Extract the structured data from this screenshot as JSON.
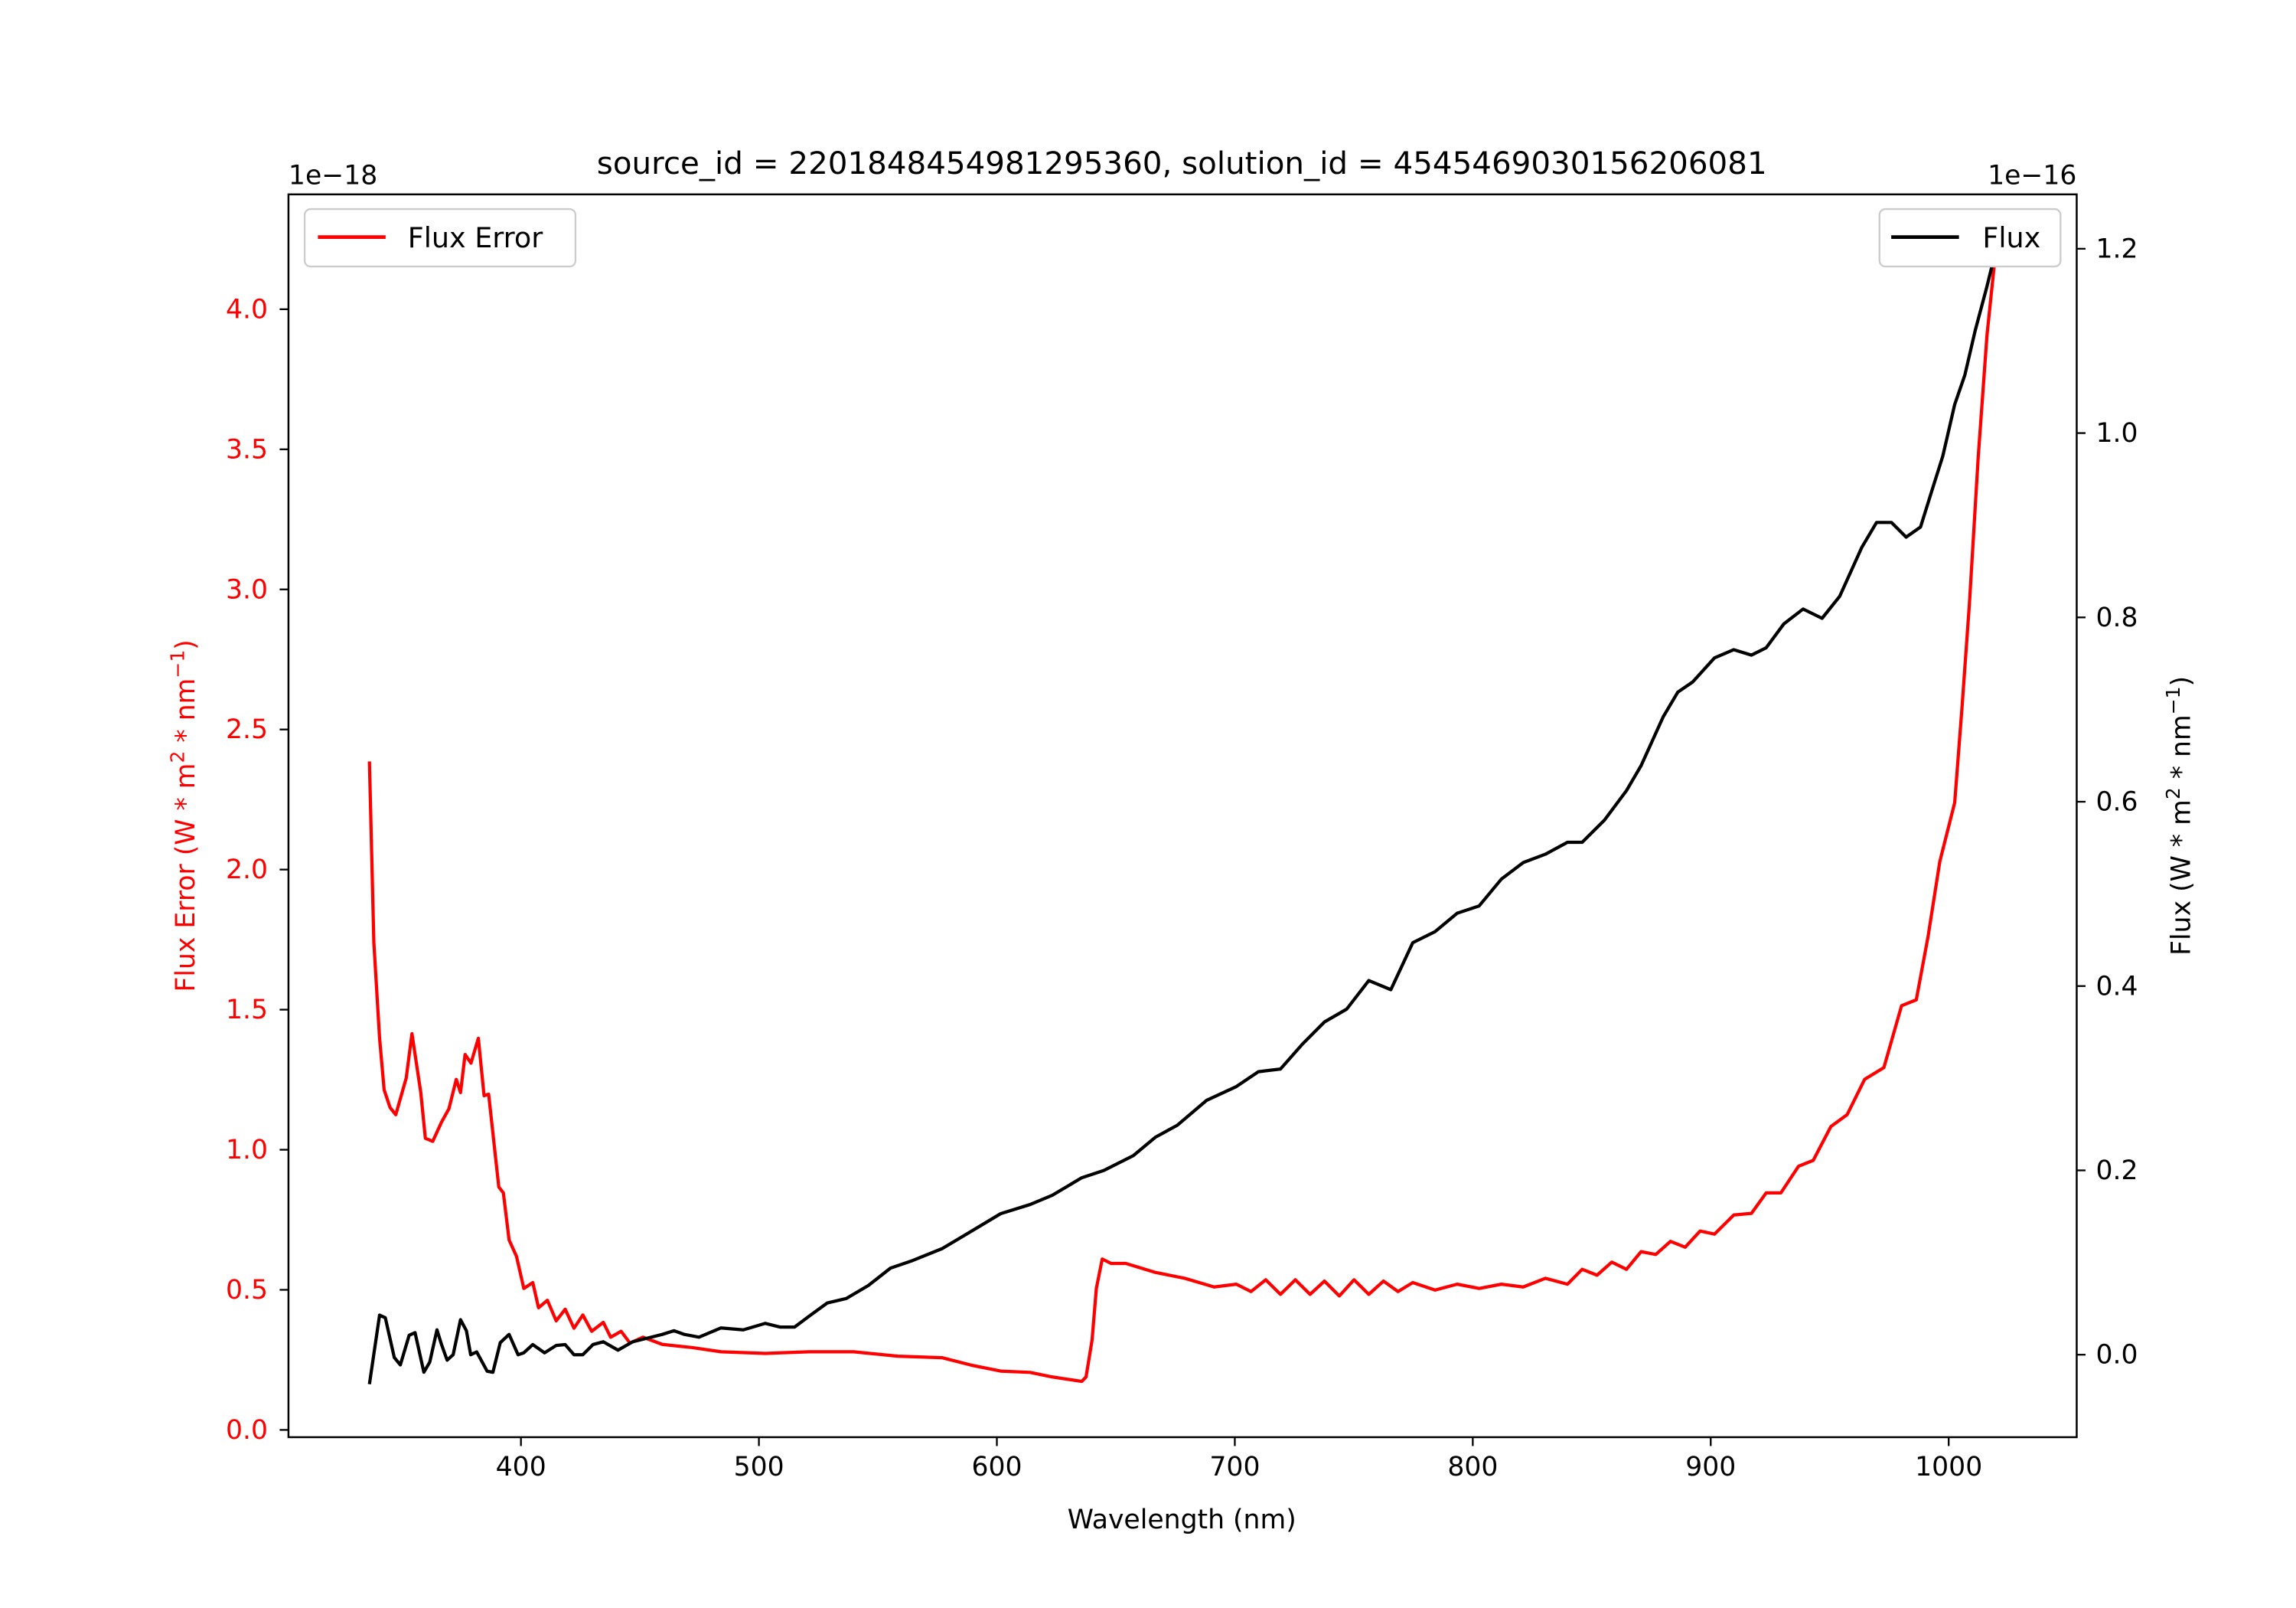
{
  "chart_data": {
    "type": "line",
    "title": "source_id = 2201848454981295360, solution_id = 4545469030156206081",
    "xlabel": "Wavelength (nm)",
    "xlim": [
      302.3,
      1053.8
    ],
    "xticks": [
      400,
      500,
      600,
      700,
      800,
      900,
      1000
    ],
    "left_axis": {
      "ylabel": "Flux Error (W * m^2 * nm^-1)",
      "ylabel_main": "Flux Error (W * m",
      "ylabel_mid": " * nm",
      "ylabel_end": ")",
      "sup1": "2",
      "sup2": "−1",
      "offset_text": "1e−18",
      "ylim": [
        -0.026,
        4.41
      ],
      "yticks": [
        0.0,
        0.5,
        1.0,
        1.5,
        2.0,
        2.5,
        3.0,
        3.5,
        4.0
      ],
      "color": "#ff0000"
    },
    "right_axis": {
      "ylabel": "Flux (W * m^2 * nm^-1)",
      "ylabel_main": "Flux (W * m",
      "ylabel_mid": " * nm",
      "ylabel_end": ")",
      "sup1": "2",
      "sup2": "−1",
      "offset_text": "1e−16",
      "ylim": [
        -0.0895,
        1.259
      ],
      "yticks": [
        0.0,
        0.2,
        0.4,
        0.6,
        0.8,
        1.0,
        1.2
      ],
      "color": "#000000"
    },
    "legend_left": {
      "label": "Flux Error",
      "placement": "top-left"
    },
    "legend_right": {
      "label": "Flux",
      "placement": "top-right"
    },
    "series": [
      {
        "name": "Flux Error",
        "axis": "left",
        "color": "#ff0000",
        "x": [
          336.3,
          338.2,
          340.6,
          342.5,
          345,
          347.4,
          351.8,
          354.2,
          357.9,
          359.8,
          362.9,
          366.6,
          369.7,
          372.8,
          374.6,
          376.5,
          379,
          382.1,
          384.5,
          386.4,
          390.7,
          392.6,
          395,
          398.1,
          401.2,
          405,
          407.4,
          411.1,
          414.8,
          418.6,
          422.3,
          426,
          429.7,
          434.6,
          437.7,
          442.1,
          445.8,
          451.3,
          459.4,
          471.8,
          484.1,
          502.7,
          521.2,
          539.8,
          558.3,
          576.9,
          589.3,
          601.6,
          614,
          623.3,
          635.7,
          637.5,
          640,
          641.8,
          644.3,
          648,
          654.2,
          666.6,
          679,
          691.3,
          700.6,
          706.8,
          713,
          719.2,
          725.4,
          731.6,
          737.7,
          743.9,
          750.1,
          756.3,
          762.5,
          768.6,
          774.8,
          784.1,
          793.4,
          802.7,
          812,
          821.2,
          830.5,
          839.8,
          846,
          852.2,
          858.4,
          864.6,
          870.7,
          876.9,
          883.1,
          889.3,
          895.5,
          901.6,
          909.7,
          917.1,
          923.3,
          929.5,
          936.9,
          943.1,
          950.5,
          957.3,
          964.7,
          972.8,
          980.2,
          986.4,
          991.3,
          996.3,
          1002.5,
          1005.6,
          1008.7,
          1012.4,
          1016.1,
          1019.8
        ],
        "y": [
          2.386,
          1.74,
          1.398,
          1.214,
          1.151,
          1.125,
          1.256,
          1.414,
          1.204,
          1.041,
          1.03,
          1.099,
          1.146,
          1.251,
          1.204,
          1.34,
          1.309,
          1.398,
          1.193,
          1.198,
          0.867,
          0.846,
          0.678,
          0.62,
          0.505,
          0.526,
          0.436,
          0.463,
          0.389,
          0.431,
          0.363,
          0.41,
          0.352,
          0.384,
          0.331,
          0.352,
          0.31,
          0.331,
          0.305,
          0.294,
          0.279,
          0.273,
          0.279,
          0.279,
          0.263,
          0.258,
          0.231,
          0.21,
          0.205,
          0.189,
          0.173,
          0.189,
          0.321,
          0.505,
          0.61,
          0.594,
          0.594,
          0.562,
          0.541,
          0.51,
          0.52,
          0.494,
          0.536,
          0.484,
          0.536,
          0.484,
          0.531,
          0.478,
          0.536,
          0.484,
          0.531,
          0.494,
          0.526,
          0.499,
          0.52,
          0.505,
          0.52,
          0.51,
          0.541,
          0.52,
          0.573,
          0.552,
          0.599,
          0.573,
          0.636,
          0.626,
          0.673,
          0.652,
          0.71,
          0.699,
          0.767,
          0.773,
          0.846,
          0.846,
          0.941,
          0.962,
          1.083,
          1.125,
          1.251,
          1.293,
          1.514,
          1.535,
          1.761,
          2.029,
          2.239,
          2.581,
          2.949,
          3.474,
          3.905,
          4.21
        ]
      },
      {
        "name": "Flux",
        "axis": "right",
        "color": "#000000",
        "x": [
          336.3,
          340.6,
          343,
          346.8,
          349.3,
          353,
          355.5,
          359.2,
          361.7,
          364.7,
          366.6,
          369,
          371.5,
          374.6,
          377.1,
          378.9,
          381.4,
          385.8,
          388.2,
          391.3,
          395,
          398.8,
          401.2,
          405,
          409.9,
          414.8,
          418.6,
          422.3,
          426,
          430.3,
          434.6,
          440.8,
          447,
          453.2,
          459.4,
          464.3,
          468.7,
          474.8,
          484.1,
          493.4,
          502.7,
          508.9,
          515,
          521.2,
          528.7,
          536.7,
          546,
          555.3,
          564.5,
          576.9,
          589.3,
          601.6,
          614,
          623.3,
          635.7,
          645,
          657.3,
          666.6,
          675.9,
          688.2,
          700.6,
          709.9,
          719.2,
          728.4,
          737.7,
          747,
          756.3,
          765.6,
          774.8,
          784.1,
          793.4,
          802.7,
          812,
          821.2,
          830.5,
          839.8,
          846,
          855.3,
          864.6,
          870.7,
          880,
          886.2,
          892.4,
          901.6,
          909.7,
          917.1,
          923.3,
          930.7,
          938.8,
          946.8,
          954.2,
          963.5,
          969.7,
          975.9,
          982.1,
          988.2,
          992.6,
          997.5,
          1002.5,
          1006.8,
          1011.1,
          1016.1,
          1019.8
        ],
        "y": [
          -0.032,
          0.043,
          0.04,
          -0.003,
          -0.011,
          0.021,
          0.024,
          -0.019,
          -0.008,
          0.027,
          0.011,
          -0.006,
          0,
          0.038,
          0.026,
          0,
          0.003,
          -0.018,
          -0.019,
          0.013,
          0.022,
          0,
          0.002,
          0.011,
          0.002,
          0.01,
          0.011,
          0,
          0,
          0.011,
          0.014,
          0.005,
          0.014,
          0.018,
          0.022,
          0.026,
          0.022,
          0.019,
          0.029,
          0.027,
          0.034,
          0.03,
          0.03,
          0.042,
          0.056,
          0.061,
          0.075,
          0.094,
          0.102,
          0.115,
          0.134,
          0.153,
          0.163,
          0.173,
          0.192,
          0.2,
          0.216,
          0.236,
          0.249,
          0.276,
          0.291,
          0.307,
          0.31,
          0.337,
          0.361,
          0.375,
          0.406,
          0.396,
          0.447,
          0.459,
          0.479,
          0.487,
          0.516,
          0.534,
          0.543,
          0.556,
          0.556,
          0.58,
          0.612,
          0.639,
          0.692,
          0.719,
          0.73,
          0.756,
          0.765,
          0.759,
          0.767,
          0.793,
          0.809,
          0.799,
          0.823,
          0.876,
          0.903,
          0.903,
          0.887,
          0.898,
          0.935,
          0.975,
          1.031,
          1.063,
          1.111,
          1.159,
          1.198
        ]
      }
    ]
  }
}
